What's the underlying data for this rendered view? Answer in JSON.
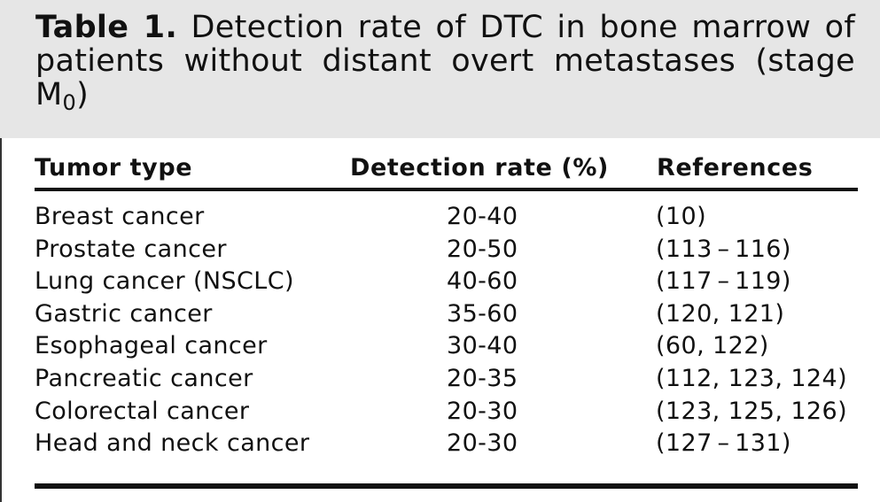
{
  "caption": {
    "label": "Table 1.",
    "text_line1_2": "Detection rate of DTC in bone marrow of patients without distant overt metastases (stage",
    "stage_letter": "M",
    "stage_subscript": "0",
    "close_paren": ")"
  },
  "table": {
    "headers": [
      "Tumor type",
      "Detection rate (%)",
      "References"
    ],
    "rows": [
      [
        "Breast cancer",
        "20-40",
        "(10)"
      ],
      [
        "Prostate cancer",
        "20-50",
        "(113 – 116)"
      ],
      [
        "Lung cancer (NSCLC)",
        "40-60",
        "(117 – 119)"
      ],
      [
        "Gastric cancer",
        "35-60",
        "(120, 121)"
      ],
      [
        "Esophageal cancer",
        "30-40",
        "(60, 122)"
      ],
      [
        "Pancreatic cancer",
        "20-35",
        "(112, 123, 124)"
      ],
      [
        "Colorectal cancer",
        "20-30",
        "(123, 125, 126)"
      ],
      [
        "Head and neck cancer",
        "20-30",
        "(127 – 131)"
      ]
    ]
  },
  "colors": {
    "caption_background": "#e6e6e6",
    "text": "#111111",
    "rule": "#111111"
  }
}
